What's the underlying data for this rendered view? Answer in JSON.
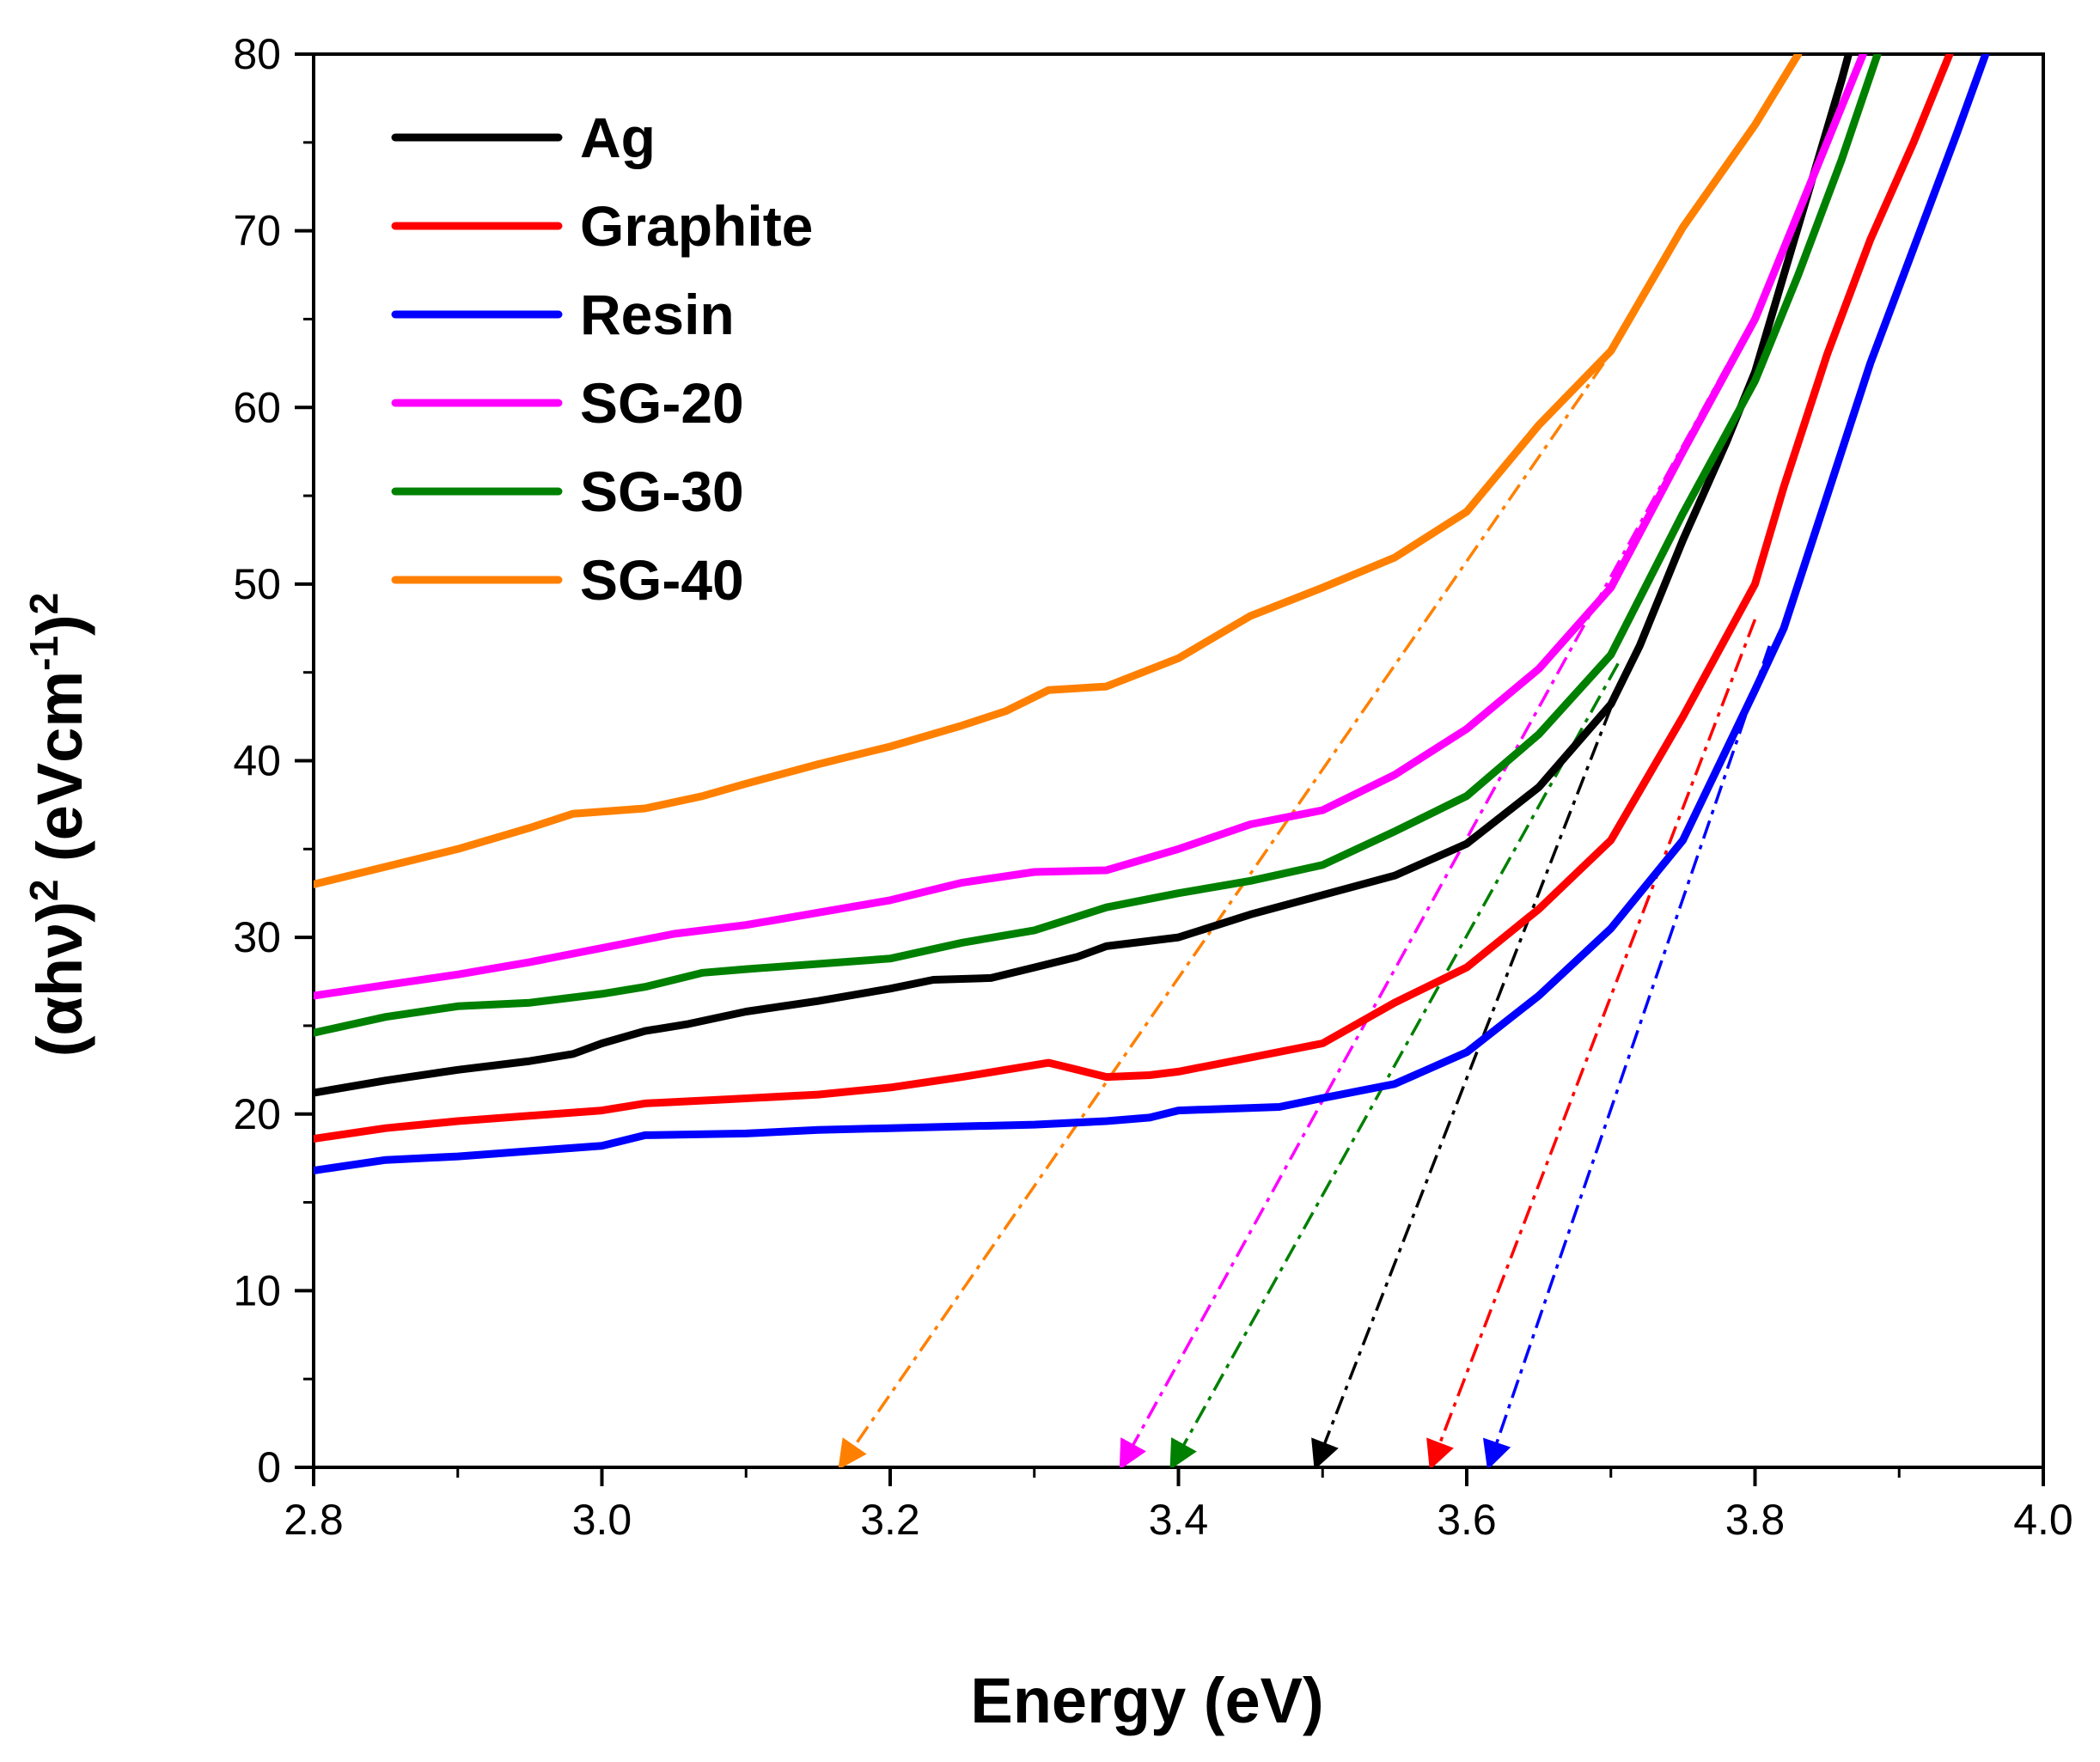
{
  "chart_data": {
    "type": "line",
    "xlabel": "Energy (eV)",
    "ylabel": {
      "prefix": "(αhν)",
      "sup1": "2",
      "mid": " (eVcm",
      "sup2": "-1",
      "close": ")",
      "sup3": "2"
    },
    "xlim": [
      2.8,
      4.0
    ],
    "ylim": [
      0,
      80
    ],
    "x_ticks": [
      2.8,
      3.0,
      3.2,
      3.4,
      3.6,
      3.8,
      4.0
    ],
    "x_tick_labels": [
      "2.8",
      "3.0",
      "3.2",
      "3.4",
      "3.6",
      "3.8",
      "4.0"
    ],
    "y_ticks": [
      0,
      10,
      20,
      30,
      40,
      50,
      60,
      70,
      80
    ],
    "y_tick_labels": [
      "0",
      "10",
      "20",
      "30",
      "40",
      "50",
      "60",
      "70",
      "80"
    ],
    "grid": false,
    "legend_position": "top-left",
    "series": [
      {
        "name": "Ag",
        "color": "#000000",
        "points": [
          [
            2.8,
            21.2
          ],
          [
            2.85,
            21.9
          ],
          [
            2.9,
            22.5
          ],
          [
            2.95,
            23.0
          ],
          [
            2.98,
            23.4
          ],
          [
            3.0,
            24.0
          ],
          [
            3.03,
            24.7
          ],
          [
            3.06,
            25.1
          ],
          [
            3.1,
            25.8
          ],
          [
            3.15,
            26.4
          ],
          [
            3.2,
            27.1
          ],
          [
            3.23,
            27.6
          ],
          [
            3.27,
            27.7
          ],
          [
            3.3,
            28.3
          ],
          [
            3.33,
            28.9
          ],
          [
            3.35,
            29.5
          ],
          [
            3.4,
            30.0
          ],
          [
            3.45,
            31.3
          ],
          [
            3.5,
            32.4
          ],
          [
            3.55,
            33.5
          ],
          [
            3.6,
            35.3
          ],
          [
            3.65,
            38.5
          ],
          [
            3.7,
            43.2
          ],
          [
            3.72,
            46.5
          ],
          [
            3.75,
            52.5
          ],
          [
            3.78,
            58.0
          ],
          [
            3.8,
            62.0
          ],
          [
            3.82,
            67.5
          ],
          [
            3.84,
            73.0
          ],
          [
            3.86,
            78.5
          ],
          [
            3.865,
            80.0
          ]
        ]
      },
      {
        "name": "Graphite",
        "color": "#ff0000",
        "points": [
          [
            2.8,
            18.6
          ],
          [
            2.85,
            19.2
          ],
          [
            2.9,
            19.6
          ],
          [
            2.95,
            19.9
          ],
          [
            3.0,
            20.2
          ],
          [
            3.03,
            20.6
          ],
          [
            3.08,
            20.8
          ],
          [
            3.15,
            21.1
          ],
          [
            3.2,
            21.5
          ],
          [
            3.25,
            22.1
          ],
          [
            3.28,
            22.5
          ],
          [
            3.31,
            22.9
          ],
          [
            3.33,
            22.5
          ],
          [
            3.35,
            22.1
          ],
          [
            3.38,
            22.2
          ],
          [
            3.4,
            22.4
          ],
          [
            3.45,
            23.2
          ],
          [
            3.5,
            24.0
          ],
          [
            3.55,
            26.3
          ],
          [
            3.6,
            28.3
          ],
          [
            3.65,
            31.6
          ],
          [
            3.7,
            35.5
          ],
          [
            3.75,
            42.5
          ],
          [
            3.8,
            50.0
          ],
          [
            3.82,
            55.5
          ],
          [
            3.85,
            63.0
          ],
          [
            3.88,
            69.5
          ],
          [
            3.91,
            75.0
          ],
          [
            3.935,
            80.0
          ]
        ]
      },
      {
        "name": "Resin",
        "color": "#0000ff",
        "points": [
          [
            2.8,
            16.8
          ],
          [
            2.85,
            17.4
          ],
          [
            2.9,
            17.6
          ],
          [
            2.95,
            17.9
          ],
          [
            3.0,
            18.2
          ],
          [
            3.03,
            18.8
          ],
          [
            3.1,
            18.9
          ],
          [
            3.15,
            19.1
          ],
          [
            3.2,
            19.2
          ],
          [
            3.3,
            19.4
          ],
          [
            3.35,
            19.6
          ],
          [
            3.38,
            19.8
          ],
          [
            3.4,
            20.2
          ],
          [
            3.47,
            20.4
          ],
          [
            3.5,
            20.9
          ],
          [
            3.55,
            21.7
          ],
          [
            3.6,
            23.5
          ],
          [
            3.65,
            26.7
          ],
          [
            3.7,
            30.5
          ],
          [
            3.75,
            35.5
          ],
          [
            3.8,
            44.0
          ],
          [
            3.82,
            47.5
          ],
          [
            3.85,
            55.0
          ],
          [
            3.88,
            62.5
          ],
          [
            3.91,
            69.0
          ],
          [
            3.94,
            75.5
          ],
          [
            3.96,
            80.0
          ]
        ]
      },
      {
        "name": "SG-20",
        "color": "#ff00ff",
        "points": [
          [
            2.8,
            26.7
          ],
          [
            2.85,
            27.3
          ],
          [
            2.9,
            27.9
          ],
          [
            2.95,
            28.6
          ],
          [
            3.0,
            29.4
          ],
          [
            3.05,
            30.2
          ],
          [
            3.1,
            30.7
          ],
          [
            3.15,
            31.4
          ],
          [
            3.2,
            32.1
          ],
          [
            3.25,
            33.1
          ],
          [
            3.3,
            33.7
          ],
          [
            3.35,
            33.8
          ],
          [
            3.4,
            35.0
          ],
          [
            3.45,
            36.4
          ],
          [
            3.5,
            37.2
          ],
          [
            3.55,
            39.2
          ],
          [
            3.6,
            41.8
          ],
          [
            3.65,
            45.2
          ],
          [
            3.7,
            49.8
          ],
          [
            3.75,
            57.5
          ],
          [
            3.8,
            65.0
          ],
          [
            3.83,
            71.0
          ],
          [
            3.86,
            77.0
          ],
          [
            3.875,
            80.0
          ]
        ]
      },
      {
        "name": "SG-30",
        "color": "#008000",
        "points": [
          [
            2.8,
            24.6
          ],
          [
            2.85,
            25.5
          ],
          [
            2.9,
            26.1
          ],
          [
            2.95,
            26.3
          ],
          [
            3.0,
            26.8
          ],
          [
            3.03,
            27.2
          ],
          [
            3.07,
            28.0
          ],
          [
            3.1,
            28.2
          ],
          [
            3.15,
            28.5
          ],
          [
            3.2,
            28.8
          ],
          [
            3.25,
            29.7
          ],
          [
            3.3,
            30.4
          ],
          [
            3.35,
            31.7
          ],
          [
            3.4,
            32.5
          ],
          [
            3.45,
            33.2
          ],
          [
            3.5,
            34.1
          ],
          [
            3.55,
            36.0
          ],
          [
            3.6,
            38.0
          ],
          [
            3.65,
            41.5
          ],
          [
            3.7,
            46.0
          ],
          [
            3.75,
            54.0
          ],
          [
            3.8,
            61.5
          ],
          [
            3.83,
            67.5
          ],
          [
            3.86,
            74.0
          ],
          [
            3.885,
            80.0
          ]
        ]
      },
      {
        "name": "SG-40",
        "color": "#ff8000",
        "points": [
          [
            2.8,
            33.0
          ],
          [
            2.85,
            34.0
          ],
          [
            2.9,
            35.0
          ],
          [
            2.95,
            36.2
          ],
          [
            2.98,
            37.0
          ],
          [
            3.03,
            37.3
          ],
          [
            3.07,
            38.0
          ],
          [
            3.1,
            38.7
          ],
          [
            3.15,
            39.8
          ],
          [
            3.2,
            40.8
          ],
          [
            3.25,
            42.0
          ],
          [
            3.28,
            42.8
          ],
          [
            3.31,
            44.0
          ],
          [
            3.35,
            44.2
          ],
          [
            3.4,
            45.8
          ],
          [
            3.45,
            48.2
          ],
          [
            3.5,
            49.8
          ],
          [
            3.55,
            51.5
          ],
          [
            3.6,
            54.1
          ],
          [
            3.65,
            59.0
          ],
          [
            3.7,
            63.2
          ],
          [
            3.75,
            70.2
          ],
          [
            3.8,
            76.0
          ],
          [
            3.83,
            80.0
          ]
        ]
      }
    ],
    "tangent_lines": [
      {
        "series": "Ag",
        "color": "#000000",
        "from": [
          3.7,
          43.0
        ],
        "to": [
          3.495,
          0.0
        ]
      },
      {
        "series": "Graphite",
        "color": "#ff0000",
        "from": [
          3.8,
          48.0
        ],
        "to": [
          3.575,
          0.0
        ]
      },
      {
        "series": "Resin",
        "color": "#0000ff",
        "from": [
          3.81,
          46.5
        ],
        "to": [
          3.615,
          0.0
        ]
      },
      {
        "series": "SG-20",
        "color": "#ff00ff",
        "from": [
          3.805,
          66.0
        ],
        "to": [
          3.36,
          0.0
        ]
      },
      {
        "series": "SG-30",
        "color": "#008000",
        "from": [
          3.705,
          45.5
        ],
        "to": [
          3.395,
          0.0
        ]
      },
      {
        "series": "SG-40",
        "color": "#ff8000",
        "from": [
          3.695,
          62.5
        ],
        "to": [
          3.165,
          0.0
        ]
      }
    ]
  }
}
